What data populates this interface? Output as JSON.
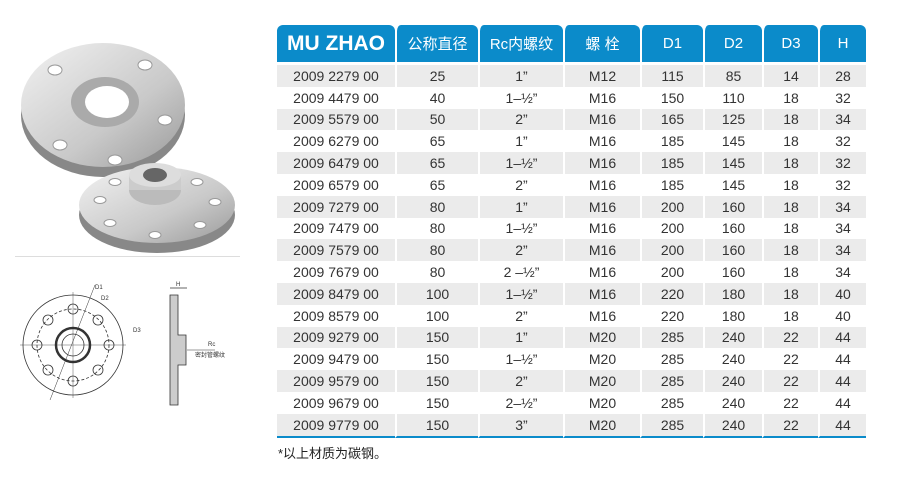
{
  "table": {
    "headers": [
      "MU ZHAO",
      "公称直径",
      "Rc内螺纹",
      "螺 栓",
      "D1",
      "D2",
      "D3",
      "H"
    ],
    "rows": [
      [
        "2009 2279 00",
        "25",
        "1”",
        "M12",
        "115",
        "85",
        "14",
        "28"
      ],
      [
        "2009 4479 00",
        "40",
        "1–½”",
        "M16",
        "150",
        "110",
        "18",
        "32"
      ],
      [
        "2009 5579 00",
        "50",
        "2”",
        "M16",
        "165",
        "125",
        "18",
        "34"
      ],
      [
        "2009 6279 00",
        "65",
        "1”",
        "M16",
        "185",
        "145",
        "18",
        "32"
      ],
      [
        "2009 6479 00",
        "65",
        "1–½”",
        "M16",
        "185",
        "145",
        "18",
        "32"
      ],
      [
        "2009 6579 00",
        "65",
        "2”",
        "M16",
        "185",
        "145",
        "18",
        "32"
      ],
      [
        "2009 7279 00",
        "80",
        "1”",
        "M16",
        "200",
        "160",
        "18",
        "34"
      ],
      [
        "2009 7479 00",
        "80",
        "1–½”",
        "M16",
        "200",
        "160",
        "18",
        "34"
      ],
      [
        "2009 7579 00",
        "80",
        "2”",
        "M16",
        "200",
        "160",
        "18",
        "34"
      ],
      [
        "2009 7679 00",
        "80",
        "2 –½”",
        "M16",
        "200",
        "160",
        "18",
        "34"
      ],
      [
        "2009 8479 00",
        "100",
        "1–½”",
        "M16",
        "220",
        "180",
        "18",
        "40"
      ],
      [
        "2009 8579 00",
        "100",
        "2”",
        "M16",
        "220",
        "180",
        "18",
        "40"
      ],
      [
        "2009 9279 00",
        "150",
        "1”",
        "M20",
        "285",
        "240",
        "22",
        "44"
      ],
      [
        "2009 9479 00",
        "150",
        "1–½”",
        "M20",
        "285",
        "240",
        "22",
        "44"
      ],
      [
        "2009 9579 00",
        "150",
        "2”",
        "M20",
        "285",
        "240",
        "22",
        "44"
      ],
      [
        "2009 9679 00",
        "150",
        "2–½”",
        "M20",
        "285",
        "240",
        "22",
        "44"
      ],
      [
        "2009 9779 00",
        "150",
        "3”",
        "M20",
        "285",
        "240",
        "22",
        "44"
      ]
    ]
  },
  "note": "*以上材质为碳钢。",
  "drawing": {
    "d1": "D1",
    "d2": "D2",
    "d3": "D3",
    "h": "H",
    "rc": "Rc",
    "thread": "密封管螺纹"
  },
  "colors": {
    "header": "#0b8bca",
    "row_alt": "#ebebeb"
  }
}
